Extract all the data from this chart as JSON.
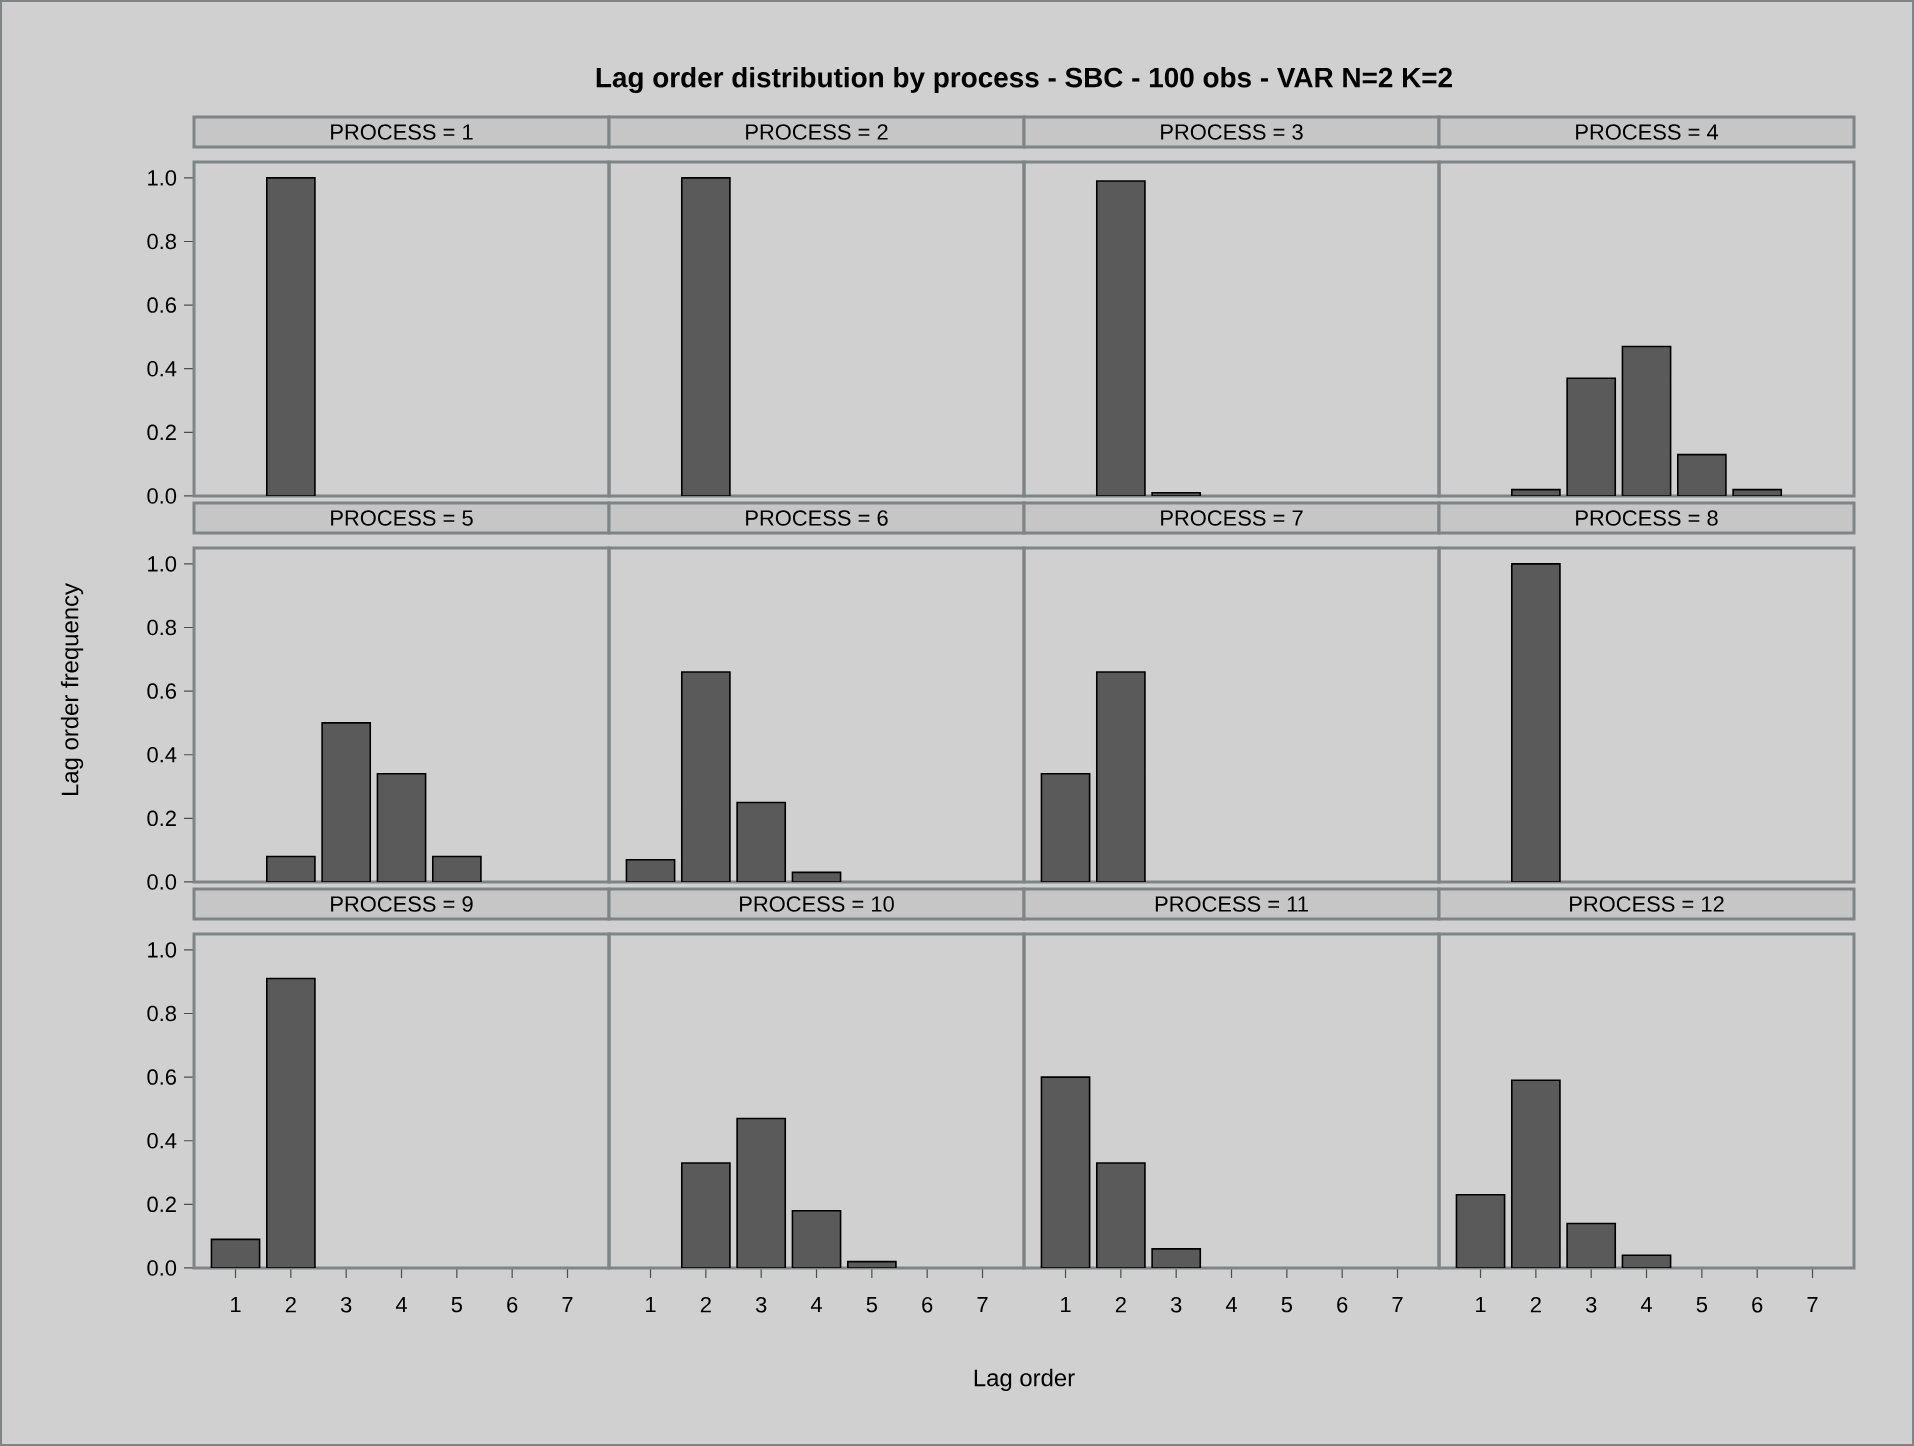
{
  "chart_data": [
    {
      "type": "bar",
      "title": "PROCESS = 1",
      "annotations": [
        "Lag order distribution by process - SBC - 100 obs - VAR N=2 K=2"
      ],
      "categories": [
        "1",
        "2",
        "3",
        "4",
        "5",
        "6",
        "7"
      ],
      "values": [
        null,
        1.0,
        null,
        null,
        null,
        null,
        null
      ],
      "color": "#5a5a5a",
      "ylim": [
        0,
        1.05
      ],
      "yticks": [
        {
          "value": 0,
          "label": "0.0"
        },
        {
          "value": 0.2,
          "label": "0.2"
        },
        {
          "value": 0.4,
          "label": "0.4"
        },
        {
          "value": 0.6,
          "label": "0.6"
        },
        {
          "value": 0.8,
          "label": "0.8"
        },
        {
          "value": 1,
          "label": "1.0"
        }
      ],
      "tick_labels": "y"
    },
    {
      "type": "bar",
      "title": "PROCESS = 2",
      "categories": [
        "1",
        "2",
        "3",
        "4",
        "5",
        "6",
        "7"
      ],
      "values": [
        null,
        1.0,
        null,
        null,
        null,
        null,
        null
      ],
      "color": "#5a5a5a",
      "ylim": [
        0,
        1.05
      ],
      "tick_labels": false
    },
    {
      "type": "bar",
      "title": "PROCESS = 3",
      "categories": [
        "1",
        "2",
        "3",
        "4",
        "5",
        "6",
        "7"
      ],
      "values": [
        null,
        0.99,
        0.01,
        null,
        null,
        null,
        null
      ],
      "color": "#5a5a5a",
      "ylim": [
        0,
        1.05
      ],
      "tick_labels": false
    },
    {
      "type": "bar",
      "title": "PROCESS = 4",
      "categories": [
        "1",
        "2",
        "3",
        "4",
        "5",
        "6",
        "7"
      ],
      "values": [
        null,
        0.02,
        0.37,
        0.47,
        0.13,
        0.02,
        null
      ],
      "color": "#5a5a5a",
      "ylim": [
        0,
        1.05
      ],
      "tick_labels": false
    },
    {
      "type": "bar",
      "title": "PROCESS = 5",
      "ylabel": "Lag order frequency",
      "categories": [
        "1",
        "2",
        "3",
        "4",
        "5",
        "6",
        "7"
      ],
      "values": [
        null,
        0.08,
        0.5,
        0.34,
        0.08,
        null,
        null
      ],
      "color": "#5a5a5a",
      "ylim": [
        0,
        1.05
      ],
      "yticks": [
        {
          "value": 0,
          "label": "0.0"
        },
        {
          "value": 0.2,
          "label": "0.2"
        },
        {
          "value": 0.4,
          "label": "0.4"
        },
        {
          "value": 0.6,
          "label": "0.6"
        },
        {
          "value": 0.8,
          "label": "0.8"
        },
        {
          "value": 1,
          "label": "1.0"
        }
      ],
      "tick_labels": "y"
    },
    {
      "type": "bar",
      "title": "PROCESS = 6",
      "categories": [
        "1",
        "2",
        "3",
        "4",
        "5",
        "6",
        "7"
      ],
      "values": [
        0.07,
        0.66,
        0.25,
        0.03,
        null,
        null,
        null
      ],
      "color": "#5a5a5a",
      "ylim": [
        0,
        1.05
      ],
      "tick_labels": false
    },
    {
      "type": "bar",
      "title": "PROCESS = 7",
      "categories": [
        "1",
        "2",
        "3",
        "4",
        "5",
        "6",
        "7"
      ],
      "values": [
        0.34,
        0.66,
        null,
        null,
        null,
        null,
        null
      ],
      "color": "#5a5a5a",
      "ylim": [
        0,
        1.05
      ],
      "tick_labels": false
    },
    {
      "type": "bar",
      "title": "PROCESS = 8",
      "categories": [
        "1",
        "2",
        "3",
        "4",
        "5",
        "6",
        "7"
      ],
      "values": [
        null,
        1.0,
        null,
        null,
        null,
        null,
        null
      ],
      "color": "#5a5a5a",
      "ylim": [
        0,
        1.05
      ],
      "tick_labels": false
    },
    {
      "type": "bar",
      "title": "PROCESS = 9",
      "categories": [
        "1",
        "2",
        "3",
        "4",
        "5",
        "6",
        "7"
      ],
      "values": [
        0.09,
        0.91,
        null,
        null,
        null,
        null,
        null
      ],
      "color": "#5a5a5a",
      "ylim": [
        0,
        1.05
      ],
      "yticks": [
        {
          "value": 0,
          "label": "0.0"
        },
        {
          "value": 0.2,
          "label": "0.2"
        },
        {
          "value": 0.4,
          "label": "0.4"
        },
        {
          "value": 0.6,
          "label": "0.6"
        },
        {
          "value": 0.8,
          "label": "0.8"
        },
        {
          "value": 1,
          "label": "1.0"
        }
      ]
    },
    {
      "type": "bar",
      "title": "PROCESS = 10",
      "xlabel": "Lag order",
      "categories": [
        "1",
        "2",
        "3",
        "4",
        "5",
        "6",
        "7"
      ],
      "values": [
        null,
        0.33,
        0.47,
        0.18,
        0.02,
        null,
        null
      ],
      "color": "#5a5a5a",
      "ylim": [
        0,
        1.05
      ],
      "tick_labels": "x"
    },
    {
      "type": "bar",
      "title": "PROCESS = 11",
      "categories": [
        "1",
        "2",
        "3",
        "4",
        "5",
        "6",
        "7"
      ],
      "values": [
        0.6,
        0.33,
        0.06,
        null,
        null,
        null,
        null
      ],
      "color": "#5a5a5a",
      "ylim": [
        0,
        1.05
      ],
      "tick_labels": "x"
    },
    {
      "type": "bar",
      "title": "PROCESS = 12",
      "categories": [
        "1",
        "2",
        "3",
        "4",
        "5",
        "6",
        "7"
      ],
      "values": [
        0.23,
        0.59,
        0.14,
        0.04,
        null,
        null,
        null
      ],
      "color": "#5a5a5a",
      "ylim": [
        0,
        1.05
      ],
      "tick_labels": "x"
    }
  ]
}
